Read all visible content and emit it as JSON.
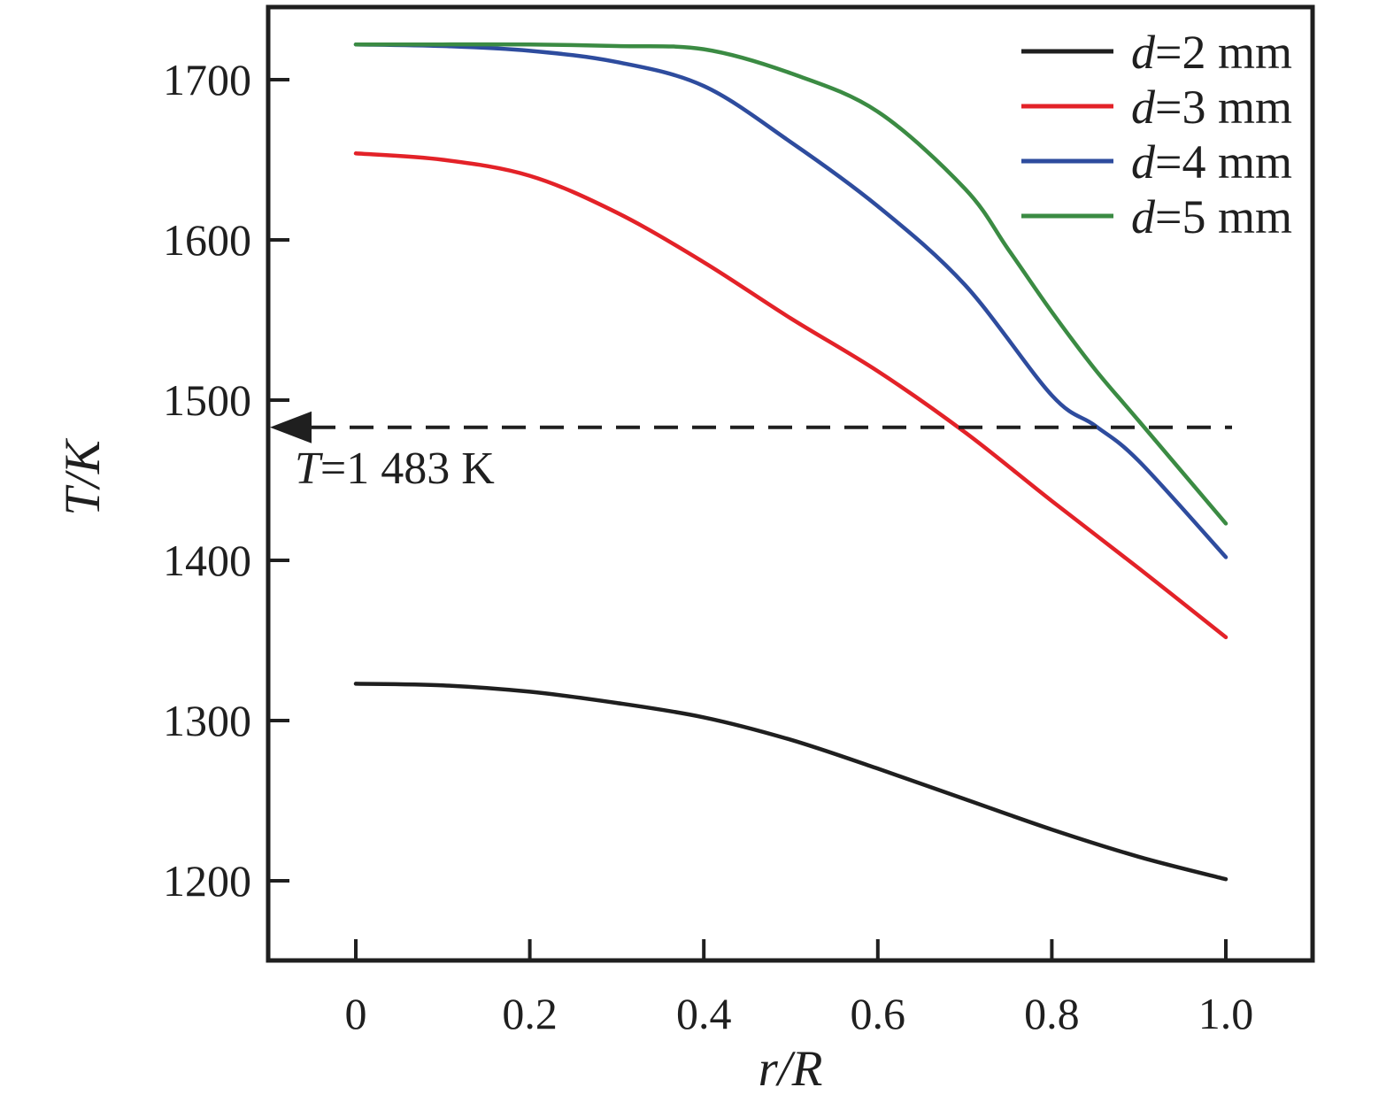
{
  "figure": {
    "background": "#ffffff",
    "frame_color": "#1f1f1f"
  },
  "chart_data": {
    "type": "line",
    "title": "",
    "xlabel": "r/R",
    "ylabel": "T/K",
    "xlim": [
      -0.1,
      1.1
    ],
    "ylim": [
      1150,
      1745
    ],
    "grid": false,
    "legend_position": "top-right",
    "x_ticks": {
      "values": [
        0,
        0.2,
        0.4,
        0.6,
        0.8,
        1.0
      ],
      "labels": [
        "0",
        "0.2",
        "0.4",
        "0.6",
        "0.8",
        "1.0"
      ]
    },
    "y_ticks": {
      "values": [
        1700,
        1600,
        1500,
        1400,
        1300,
        1200
      ],
      "labels": [
        "1700",
        "1600",
        "1500",
        "1400",
        "1300",
        "1200"
      ]
    },
    "series": [
      {
        "name": "d=2 mm",
        "color": "#1f1f1f",
        "points": [
          [
            0,
            1323
          ],
          [
            0.1,
            1322
          ],
          [
            0.2,
            1318
          ],
          [
            0.3,
            1311
          ],
          [
            0.4,
            1302
          ],
          [
            0.5,
            1288
          ],
          [
            0.6,
            1270
          ],
          [
            0.7,
            1251
          ],
          [
            0.8,
            1232
          ],
          [
            0.9,
            1215
          ],
          [
            1.0,
            1201
          ]
        ]
      },
      {
        "name": "d=3 mm",
        "color": "#e32228",
        "points": [
          [
            0,
            1654
          ],
          [
            0.1,
            1650
          ],
          [
            0.2,
            1640
          ],
          [
            0.3,
            1617
          ],
          [
            0.4,
            1586
          ],
          [
            0.5,
            1551
          ],
          [
            0.6,
            1518
          ],
          [
            0.7,
            1480
          ],
          [
            0.8,
            1437
          ],
          [
            0.9,
            1395
          ],
          [
            1.0,
            1352
          ]
        ]
      },
      {
        "name": "d=4 mm",
        "color": "#2e4c9e",
        "points": [
          [
            0,
            1722
          ],
          [
            0.1,
            1721
          ],
          [
            0.2,
            1718
          ],
          [
            0.3,
            1711
          ],
          [
            0.4,
            1696
          ],
          [
            0.5,
            1661
          ],
          [
            0.6,
            1621
          ],
          [
            0.7,
            1572
          ],
          [
            0.8,
            1503
          ],
          [
            0.85,
            1484
          ],
          [
            0.9,
            1462
          ],
          [
            1.0,
            1402
          ]
        ]
      },
      {
        "name": "d=5 mm",
        "color": "#3b8b43",
        "points": [
          [
            0,
            1722
          ],
          [
            0.1,
            1722
          ],
          [
            0.2,
            1722
          ],
          [
            0.3,
            1721
          ],
          [
            0.4,
            1719
          ],
          [
            0.5,
            1704
          ],
          [
            0.6,
            1680
          ],
          [
            0.7,
            1632
          ],
          [
            0.75,
            1594
          ],
          [
            0.8,
            1555
          ],
          [
            0.85,
            1519
          ],
          [
            0.9,
            1487
          ],
          [
            1.0,
            1423
          ]
        ]
      }
    ],
    "annotation": {
      "label": "T=1 483 K",
      "value": 1483,
      "line_style": "dashed",
      "arrow": "left",
      "color": "#1f1f1f"
    }
  }
}
